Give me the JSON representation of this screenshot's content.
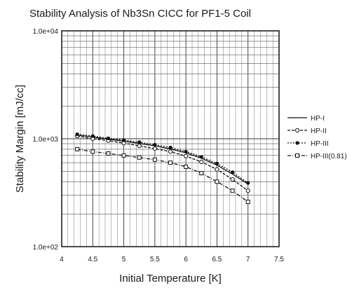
{
  "chart_data": {
    "type": "line",
    "title": "Stability Analysis of Nb3Sn CICC for PF1-5 Coil",
    "xlabel": "Initial Temperature [K]",
    "ylabel": "Stability Margin [mJ/cc]",
    "xlim": [
      4,
      7.5
    ],
    "ylim": [
      100,
      10000
    ],
    "yscale": "log",
    "grid": true,
    "legend_position": "right",
    "x_ticks": [
      {
        "v": 4,
        "label": "4"
      },
      {
        "v": 4.5,
        "label": "4.5"
      },
      {
        "v": 5,
        "label": "5"
      },
      {
        "v": 5.5,
        "label": "5.5"
      },
      {
        "v": 6,
        "label": "6"
      },
      {
        "v": 6.5,
        "label": "6.5"
      },
      {
        "v": 7,
        "label": "7"
      },
      {
        "v": 7.5,
        "label": "7.5"
      }
    ],
    "y_ticks": [
      {
        "v": 100,
        "label": "1.0e+02"
      },
      {
        "v": 1000,
        "label": "1.0e+03"
      },
      {
        "v": 10000,
        "label": "1.0e+04"
      }
    ],
    "series": [
      {
        "name": "HP-I",
        "marker": "none",
        "x": [
          4.25,
          4.5,
          4.75,
          5.0,
          5.25,
          5.5,
          5.75,
          6.0,
          6.25,
          6.5,
          6.75,
          7.0
        ],
        "y": [
          1080,
          1040,
          990,
          950,
          905,
          860,
          805,
          740,
          660,
          570,
          470,
          380
        ]
      },
      {
        "name": "HP-II",
        "marker": "open-circle",
        "x": [
          4.25,
          4.5,
          4.75,
          5.0,
          5.25,
          5.5,
          5.75,
          6.0,
          6.25,
          6.5,
          6.75,
          7.0
        ],
        "y": [
          1060,
          1000,
          960,
          910,
          860,
          810,
          760,
          690,
          610,
          520,
          420,
          330
        ]
      },
      {
        "name": "HP-III",
        "marker": "filled-circle",
        "x": [
          4.25,
          4.5,
          4.75,
          5.0,
          5.25,
          5.5,
          5.75,
          6.0,
          6.25,
          6.5,
          6.75,
          7.0
        ],
        "y": [
          1100,
          1060,
          1010,
          970,
          930,
          880,
          830,
          760,
          680,
          590,
          490,
          390
        ]
      },
      {
        "name": "HP-III(0.81)",
        "marker": "open-square",
        "x": [
          4.25,
          4.5,
          4.75,
          5.0,
          5.25,
          5.5,
          5.75,
          6.0,
          6.25,
          6.5,
          6.75,
          7.0
        ],
        "y": [
          800,
          760,
          730,
          700,
          670,
          640,
          600,
          550,
          480,
          400,
          330,
          260
        ]
      }
    ]
  }
}
